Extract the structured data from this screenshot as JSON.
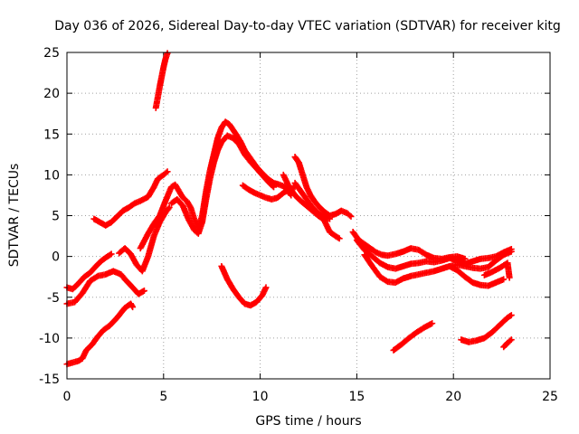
{
  "chart_data": {
    "type": "scatter",
    "title": "Day 036 of 2026, Sidereal Day-to-day VTEC variation (SDTVAR) for receiver kitg",
    "xlabel": "GPS time / hours",
    "ylabel": "SDTVAR / TECUs",
    "xlim": [
      0,
      25
    ],
    "ylim": [
      -15,
      25
    ],
    "xticks": [
      0,
      5,
      10,
      15,
      20,
      25
    ],
    "yticks": [
      -15,
      -10,
      -5,
      0,
      5,
      10,
      15,
      20,
      25
    ],
    "grid": true,
    "marker": "+",
    "color": "#ff0000",
    "series": [
      {
        "name": "s1",
        "points": [
          [
            4.6,
            18.2
          ],
          [
            4.7,
            19.5
          ],
          [
            4.8,
            20.8
          ],
          [
            4.9,
            22.0
          ],
          [
            5.0,
            23.2
          ],
          [
            5.1,
            24.2
          ],
          [
            5.2,
            24.9
          ]
        ]
      },
      {
        "name": "s2",
        "points": [
          [
            0.0,
            -13.2
          ],
          [
            0.3,
            -13.0
          ],
          [
            0.6,
            -12.8
          ],
          [
            0.8,
            -12.5
          ],
          [
            1.0,
            -11.5
          ],
          [
            1.3,
            -10.8
          ],
          [
            1.6,
            -9.8
          ],
          [
            1.9,
            -9.0
          ],
          [
            2.2,
            -8.5
          ],
          [
            2.6,
            -7.5
          ],
          [
            3.0,
            -6.3
          ],
          [
            3.3,
            -5.8
          ],
          [
            3.4,
            -6.2
          ]
        ]
      },
      {
        "name": "s3",
        "points": [
          [
            0.0,
            -3.8
          ],
          [
            0.3,
            -4.0
          ],
          [
            0.6,
            -3.3
          ],
          [
            0.9,
            -2.5
          ],
          [
            1.2,
            -2.0
          ],
          [
            1.5,
            -1.2
          ],
          [
            1.8,
            -0.5
          ],
          [
            2.1,
            0.0
          ],
          [
            2.3,
            0.3
          ]
        ]
      },
      {
        "name": "s4",
        "points": [
          [
            0.0,
            -5.8
          ],
          [
            0.4,
            -5.6
          ],
          [
            0.8,
            -4.5
          ],
          [
            1.2,
            -3.0
          ],
          [
            1.6,
            -2.4
          ],
          [
            2.0,
            -2.2
          ],
          [
            2.4,
            -1.8
          ],
          [
            2.8,
            -2.2
          ],
          [
            3.0,
            -2.8
          ],
          [
            3.4,
            -3.8
          ],
          [
            3.7,
            -4.6
          ],
          [
            4.0,
            -4.2
          ]
        ]
      },
      {
        "name": "s5",
        "points": [
          [
            1.4,
            4.6
          ],
          [
            1.7,
            4.2
          ],
          [
            2.0,
            3.8
          ],
          [
            2.3,
            4.2
          ],
          [
            2.6,
            4.9
          ],
          [
            2.9,
            5.6
          ],
          [
            3.2,
            6.0
          ],
          [
            3.5,
            6.5
          ],
          [
            3.8,
            6.8
          ],
          [
            4.2,
            7.3
          ],
          [
            4.5,
            8.5
          ],
          [
            4.7,
            9.5
          ],
          [
            5.0,
            10.0
          ],
          [
            5.2,
            10.4
          ]
        ]
      },
      {
        "name": "s6",
        "points": [
          [
            2.7,
            0.4
          ],
          [
            3.0,
            1.0
          ],
          [
            3.3,
            0.3
          ],
          [
            3.6,
            -1.0
          ],
          [
            3.9,
            -1.8
          ],
          [
            4.2,
            0.0
          ],
          [
            4.5,
            2.5
          ],
          [
            4.8,
            4.2
          ],
          [
            5.1,
            5.4
          ],
          [
            5.3,
            6.0
          ]
        ]
      },
      {
        "name": "s7",
        "points": [
          [
            3.8,
            1.0
          ],
          [
            4.2,
            2.8
          ],
          [
            4.5,
            4.0
          ],
          [
            4.8,
            5.0
          ],
          [
            5.1,
            6.8
          ],
          [
            5.4,
            8.5
          ],
          [
            5.6,
            8.8
          ],
          [
            5.8,
            8.0
          ],
          [
            6.0,
            7.2
          ],
          [
            6.2,
            6.8
          ],
          [
            6.4,
            6.0
          ],
          [
            6.6,
            4.5
          ],
          [
            6.8,
            3.5
          ],
          [
            7.0,
            5.0
          ],
          [
            7.2,
            8.0
          ],
          [
            7.4,
            10.5
          ],
          [
            7.6,
            12.5
          ],
          [
            7.8,
            14.5
          ],
          [
            8.0,
            15.8
          ],
          [
            8.2,
            16.5
          ],
          [
            8.4,
            16.2
          ],
          [
            8.6,
            15.5
          ],
          [
            8.8,
            14.8
          ],
          [
            9.0,
            14.0
          ],
          [
            9.2,
            13.0
          ],
          [
            9.5,
            12.0
          ],
          [
            9.8,
            11.0
          ],
          [
            10.1,
            10.2
          ],
          [
            10.4,
            9.5
          ],
          [
            10.7,
            9.0
          ],
          [
            11.0,
            8.8
          ],
          [
            11.3,
            8.5
          ],
          [
            11.6,
            7.5
          ]
        ]
      },
      {
        "name": "s8",
        "points": [
          [
            5.4,
            6.5
          ],
          [
            5.7,
            7.0
          ],
          [
            6.0,
            6.2
          ],
          [
            6.3,
            4.5
          ],
          [
            6.6,
            3.2
          ],
          [
            6.8,
            2.8
          ],
          [
            7.0,
            4.2
          ],
          [
            7.2,
            7.0
          ],
          [
            7.4,
            9.5
          ],
          [
            7.6,
            11.5
          ],
          [
            7.8,
            13.0
          ],
          [
            8.0,
            14.0
          ],
          [
            8.3,
            14.8
          ],
          [
            8.6,
            14.5
          ],
          [
            8.9,
            13.8
          ],
          [
            9.2,
            12.5
          ],
          [
            9.5,
            11.6
          ],
          [
            9.8,
            10.8
          ],
          [
            10.1,
            10.0
          ],
          [
            10.4,
            9.2
          ],
          [
            10.7,
            8.5
          ]
        ]
      },
      {
        "name": "s9",
        "points": [
          [
            9.1,
            8.7
          ],
          [
            9.4,
            8.2
          ],
          [
            9.7,
            7.8
          ],
          [
            10.0,
            7.5
          ],
          [
            10.3,
            7.2
          ],
          [
            10.6,
            7.0
          ],
          [
            10.9,
            7.2
          ],
          [
            11.2,
            7.8
          ],
          [
            11.5,
            8.2
          ],
          [
            11.8,
            8.5
          ]
        ]
      },
      {
        "name": "s10",
        "points": [
          [
            11.8,
            12.2
          ],
          [
            12.0,
            11.5
          ],
          [
            12.2,
            10.0
          ],
          [
            12.4,
            8.5
          ],
          [
            12.6,
            7.5
          ],
          [
            12.8,
            6.8
          ],
          [
            13.0,
            6.2
          ],
          [
            13.3,
            5.5
          ],
          [
            13.6,
            5.0
          ],
          [
            13.9,
            5.2
          ],
          [
            14.2,
            5.6
          ],
          [
            14.5,
            5.3
          ],
          [
            14.7,
            4.9
          ]
        ]
      },
      {
        "name": "s11",
        "points": [
          [
            11.2,
            10.0
          ],
          [
            11.5,
            8.5
          ],
          [
            11.8,
            7.5
          ],
          [
            12.1,
            6.8
          ],
          [
            12.4,
            6.2
          ],
          [
            12.7,
            5.6
          ],
          [
            13.0,
            5.0
          ],
          [
            13.3,
            4.5
          ],
          [
            13.6,
            3.0
          ],
          [
            13.9,
            2.5
          ],
          [
            14.1,
            2.2
          ]
        ]
      },
      {
        "name": "s12",
        "points": [
          [
            11.8,
            9.0
          ],
          [
            12.1,
            8.0
          ],
          [
            12.4,
            7.0
          ],
          [
            12.7,
            6.0
          ],
          [
            13.0,
            5.3
          ],
          [
            13.3,
            4.8
          ],
          [
            13.6,
            4.6
          ]
        ]
      },
      {
        "name": "s13",
        "points": [
          [
            8.0,
            -1.2
          ],
          [
            8.3,
            -2.8
          ],
          [
            8.6,
            -4.0
          ],
          [
            8.9,
            -5.0
          ],
          [
            9.2,
            -5.8
          ],
          [
            9.5,
            -6.0
          ],
          [
            9.8,
            -5.6
          ],
          [
            10.1,
            -4.8
          ],
          [
            10.3,
            -3.8
          ]
        ]
      },
      {
        "name": "s14",
        "points": [
          [
            14.8,
            3.0
          ],
          [
            15.1,
            2.0
          ],
          [
            15.4,
            1.5
          ],
          [
            15.7,
            1.0
          ],
          [
            16.0,
            0.5
          ],
          [
            16.3,
            0.2
          ],
          [
            16.6,
            0.1
          ],
          [
            17.0,
            0.3
          ],
          [
            17.4,
            0.6
          ],
          [
            17.8,
            1.0
          ],
          [
            18.2,
            0.8
          ],
          [
            18.6,
            0.2
          ],
          [
            19.0,
            -0.2
          ],
          [
            19.4,
            -0.3
          ],
          [
            19.8,
            -0.1
          ],
          [
            20.2,
            0.0
          ],
          [
            20.6,
            -0.3
          ]
        ]
      },
      {
        "name": "s15",
        "points": [
          [
            15.0,
            2.0
          ],
          [
            15.4,
            0.8
          ],
          [
            15.8,
            0.0
          ],
          [
            16.2,
            -0.8
          ],
          [
            16.6,
            -1.3
          ],
          [
            17.0,
            -1.5
          ],
          [
            17.4,
            -1.2
          ],
          [
            17.8,
            -0.9
          ],
          [
            18.2,
            -0.8
          ],
          [
            18.6,
            -0.6
          ],
          [
            19.0,
            -0.7
          ],
          [
            19.4,
            -0.5
          ],
          [
            19.8,
            -0.2
          ],
          [
            20.2,
            -0.5
          ],
          [
            20.6,
            -0.9
          ],
          [
            21.0,
            -0.6
          ],
          [
            21.4,
            -0.3
          ],
          [
            21.8,
            -0.2
          ],
          [
            22.2,
            0.0
          ],
          [
            22.6,
            0.5
          ],
          [
            23.0,
            0.9
          ]
        ]
      },
      {
        "name": "s16",
        "points": [
          [
            15.4,
            0.2
          ],
          [
            15.8,
            -1.2
          ],
          [
            16.2,
            -2.5
          ],
          [
            16.6,
            -3.1
          ],
          [
            17.0,
            -3.2
          ],
          [
            17.4,
            -2.7
          ],
          [
            17.8,
            -2.4
          ],
          [
            18.2,
            -2.2
          ],
          [
            18.6,
            -2.0
          ],
          [
            19.0,
            -1.8
          ],
          [
            19.4,
            -1.5
          ],
          [
            19.8,
            -1.2
          ],
          [
            20.2,
            -1.7
          ],
          [
            20.6,
            -2.5
          ],
          [
            21.0,
            -3.2
          ],
          [
            21.4,
            -3.5
          ],
          [
            21.8,
            -3.6
          ],
          [
            22.2,
            -3.2
          ],
          [
            22.6,
            -2.8
          ]
        ]
      },
      {
        "name": "s17",
        "points": [
          [
            19.8,
            -1.2
          ],
          [
            20.2,
            -1.0
          ],
          [
            20.6,
            -1.2
          ],
          [
            21.0,
            -1.4
          ],
          [
            21.4,
            -1.5
          ],
          [
            21.8,
            -1.3
          ],
          [
            22.2,
            -0.5
          ],
          [
            22.6,
            0.2
          ],
          [
            23.0,
            0.6
          ]
        ]
      },
      {
        "name": "s18",
        "points": [
          [
            21.6,
            -2.3
          ],
          [
            22.0,
            -1.9
          ],
          [
            22.4,
            -1.4
          ],
          [
            22.8,
            -0.8
          ],
          [
            22.9,
            -2.6
          ]
        ]
      },
      {
        "name": "s19",
        "points": [
          [
            16.9,
            -11.5
          ],
          [
            17.3,
            -10.8
          ],
          [
            17.7,
            -10.0
          ],
          [
            18.1,
            -9.3
          ],
          [
            18.5,
            -8.7
          ],
          [
            18.9,
            -8.2
          ]
        ]
      },
      {
        "name": "s20",
        "points": [
          [
            20.4,
            -10.2
          ],
          [
            20.8,
            -10.5
          ],
          [
            21.2,
            -10.3
          ],
          [
            21.6,
            -10.0
          ],
          [
            22.0,
            -9.3
          ],
          [
            22.4,
            -8.4
          ],
          [
            22.8,
            -7.5
          ],
          [
            23.0,
            -7.2
          ]
        ]
      },
      {
        "name": "s21",
        "points": [
          [
            22.6,
            -11.1
          ],
          [
            22.8,
            -10.6
          ],
          [
            23.0,
            -10.2
          ]
        ]
      }
    ]
  }
}
